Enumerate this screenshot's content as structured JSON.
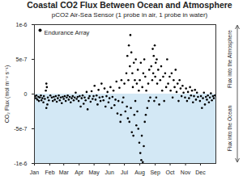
{
  "chart_data": {
    "type": "scatter",
    "title": "Coastal CO2 Flux Between Ocean and Atmosphere",
    "subtitle": "pCO2 Air-Sea Sensor (1 probe in air, 1 probe in water)",
    "y_label": "CO₂ Flux (mol m⁻² s⁻¹)",
    "annotations": [
      "Flux into the Atmosphere",
      "Flux into the Ocean"
    ],
    "legend": "top-left",
    "grid": false,
    "xlim": [
      1,
      366
    ],
    "xticks": [
      {
        "value": 1,
        "label": "Jan"
      },
      {
        "value": 32,
        "label": "Feb"
      },
      {
        "value": 60,
        "label": "Mar"
      },
      {
        "value": 91,
        "label": "Apr"
      },
      {
        "value": 121,
        "label": "May"
      },
      {
        "value": 152,
        "label": "Jun"
      },
      {
        "value": 182,
        "label": "Jul"
      },
      {
        "value": 213,
        "label": "Aug"
      },
      {
        "value": 244,
        "label": "Sep"
      },
      {
        "value": 274,
        "label": "Oct"
      },
      {
        "value": 305,
        "label": "Nov"
      },
      {
        "value": 335,
        "label": "Dec"
      }
    ],
    "ylim": [
      -1e-06,
      1e-06
    ],
    "yticks": [
      {
        "value": -1e-06,
        "label": "-1e-6"
      },
      {
        "value": -5e-07,
        "label": "-5e-7"
      },
      {
        "value": 0,
        "label": "0"
      },
      {
        "value": 5e-07,
        "label": "5e-7"
      },
      {
        "value": 1e-06,
        "label": "1e-6"
      }
    ],
    "x": [
      2,
      4,
      5,
      7,
      9,
      10,
      12,
      14,
      15,
      17,
      19,
      20,
      22,
      24,
      25,
      25,
      26,
      27,
      28,
      30,
      33,
      36,
      38,
      40,
      42,
      44,
      46,
      48,
      50,
      52,
      54,
      56,
      58,
      60,
      62,
      64,
      66,
      68,
      70,
      72,
      74,
      76,
      78,
      80,
      82,
      84,
      86,
      88,
      90,
      92,
      94,
      96,
      98,
      100,
      102,
      104,
      106,
      108,
      110,
      112,
      114,
      116,
      118,
      120,
      122,
      124,
      126,
      128,
      130,
      132,
      134,
      136,
      138,
      140,
      142,
      144,
      146,
      148,
      150,
      152,
      154,
      156,
      158,
      160,
      162,
      164,
      166,
      168,
      170,
      172,
      174,
      175,
      176,
      178,
      180,
      182,
      184,
      186,
      187,
      188,
      189,
      190,
      191,
      192,
      193,
      194,
      195,
      196,
      197,
      198,
      199,
      200,
      201,
      202,
      203,
      204,
      205,
      206,
      207,
      208,
      209,
      210,
      211,
      212,
      213,
      214,
      215,
      216,
      217,
      218,
      219,
      220,
      221,
      222,
      223,
      224,
      225,
      226,
      228,
      230,
      231,
      232,
      234,
      236,
      238,
      239,
      240,
      241,
      242,
      243,
      244,
      245,
      246,
      247,
      248,
      250,
      252,
      254,
      256,
      258,
      260,
      262,
      264,
      266,
      268,
      270,
      273,
      275,
      277,
      279,
      281,
      283,
      285,
      287,
      289,
      291,
      293,
      295,
      297,
      299,
      301,
      304,
      306,
      308,
      310,
      312,
      314,
      316,
      318,
      320,
      322,
      324,
      326,
      328,
      330,
      334,
      336,
      338,
      340,
      342,
      344,
      346,
      348,
      350,
      352,
      354,
      356,
      358,
      360,
      362,
      364
    ],
    "series": [
      {
        "name": "Endurance Array",
        "color": "#000000",
        "marker": "circle",
        "values": [
          -3e-08,
          -6e-08,
          -2e-08,
          -8e-08,
          -4e-08,
          -1e-07,
          -5e-08,
          -2e-08,
          -9e-08,
          -6e-08,
          -1.2e-07,
          -3e-08,
          -7e-08,
          5e-08,
          1.5e-07,
          -2e-07,
          1e-07,
          -1.5e-07,
          -5e-08,
          -9e-08,
          -2e-08,
          -5e-08,
          -1e-07,
          -4e-08,
          -8e-08,
          -3e-08,
          -1.1e-07,
          -6e-08,
          -2e-08,
          -9e-08,
          -5e-08,
          -1.3e-07,
          -4e-08,
          -7e-08,
          -3e-08,
          -1e-07,
          -5e-08,
          -2e-08,
          -8e-08,
          -4e-08,
          -1.2e-07,
          -6e-08,
          -3e-08,
          -9e-08,
          -5e-08,
          2e-08,
          -7e-08,
          -4e-08,
          -1e-07,
          -3e-08,
          -1.8e-07,
          -6e-08,
          -2e-08,
          -1.4e-07,
          -5e-08,
          -9e-08,
          3e-08,
          -2.2e-07,
          -6e-08,
          -3e-08,
          -1.1e-07,
          4e-08,
          -7e-08,
          -3e-08,
          1.2e-07,
          -8e-08,
          -2e-08,
          -1.5e-07,
          6e-08,
          -5e-08,
          -1e-07,
          1.5e-07,
          -4e-08,
          -9e-08,
          8e-08,
          -1.8e-07,
          -3e-08,
          3e-08,
          -1.2e-07,
          -6e-08,
          1e-07,
          -2e-07,
          -4e-08,
          5e-08,
          -1.6e-07,
          -8e-08,
          1.8e-07,
          -2.8e-07,
          -1e-07,
          9e-08,
          -4e-07,
          -3e-07,
          2e-07,
          -1.2e-07,
          -5e-08,
          1.5e-07,
          -2.5e-07,
          3e-07,
          -1.8e-07,
          5.5e-07,
          -3.5e-07,
          2e-07,
          7e-07,
          -4e-07,
          4e-07,
          8.5e-07,
          -2e-07,
          6e-07,
          -5.5e-07,
          3e-07,
          1e-07,
          -6e-07,
          4.5e-07,
          -3e-07,
          2e-07,
          -1e-07,
          5e-07,
          -4.5e-07,
          1.5e-07,
          -2.5e-07,
          3.5e-07,
          -5e-07,
          5e-08,
          -7e-07,
          2e-07,
          -8.5e-07,
          4.5e-07,
          -9.5e-07,
          -6e-07,
          1e-07,
          -9.8e-07,
          3e-07,
          -7.5e-07,
          5e-07,
          -4e-07,
          2.5e-07,
          -3e-07,
          5e-08,
          -2e-07,
          1.5e-07,
          -1e-07,
          3.5e-07,
          -5e-08,
          4e-07,
          2e-07,
          6.5e-07,
          3e-07,
          5.5e-07,
          -1e-07,
          7e-07,
          2.5e-07,
          4.5e-07,
          -5e-08,
          5e-07,
          1.5e-07,
          3.5e-07,
          -1.5e-07,
          2e-07,
          4e-07,
          5e-08,
          2.5e-07,
          -1e-07,
          3e-07,
          1e-07,
          5e-07,
          1.5e-07,
          2.5e-07,
          5e-08,
          3e-07,
          -5e-08,
          2e-07,
          1e-07,
          3.5e-07,
          3e-08,
          1.5e-07,
          -1e-07,
          2e-07,
          8e-08,
          -3e-08,
          1.2e-07,
          2e-08,
          -5e-08,
          8e-08,
          -1e-07,
          3e-08,
          -6e-08,
          1e-07,
          -2e-08,
          5e-08,
          -1.2e-07,
          -3e-08,
          6e-08,
          -8e-08,
          2e-08,
          -4e-08,
          -1e-07,
          -3e-08,
          -2e-07,
          -6e-08,
          2e-08,
          -1.5e-07,
          -4e-08,
          -8e-08,
          -2e-08,
          -1.2e-07,
          -5e-08,
          1e-08,
          -9e-08,
          -3e-08,
          -6e-08,
          -2e-08
        ]
      }
    ]
  }
}
